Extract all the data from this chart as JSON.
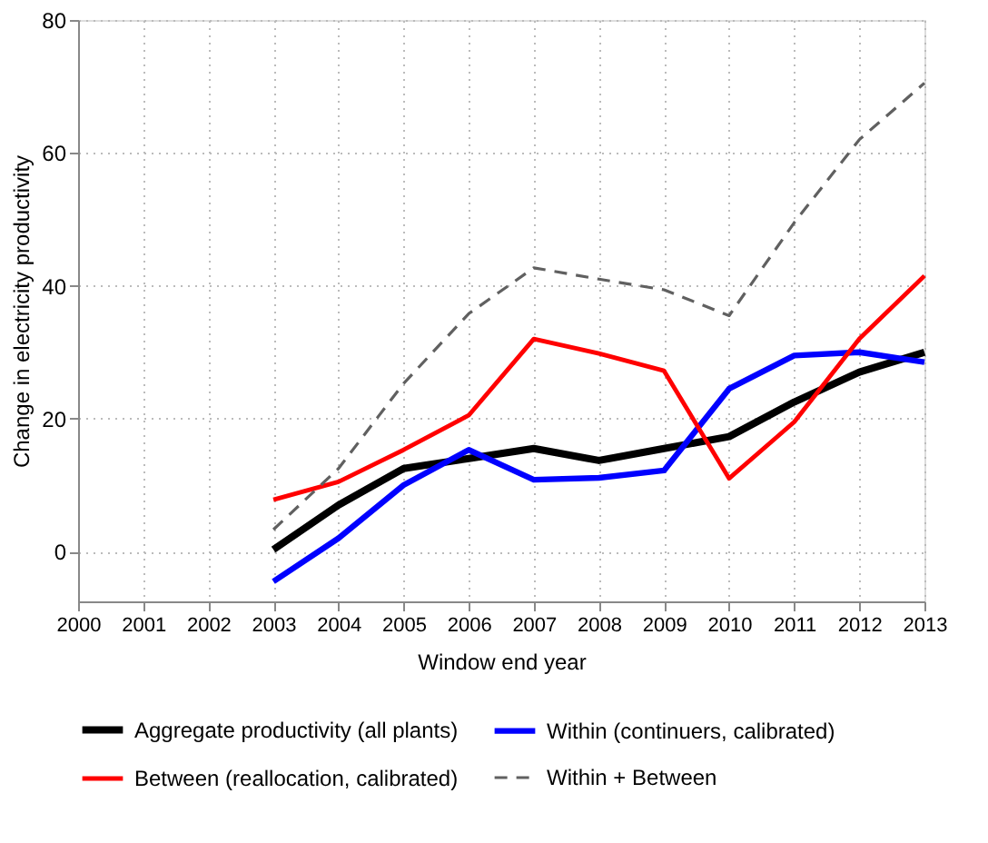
{
  "chart_data": {
    "type": "line",
    "xlabel": "Window end year",
    "ylabel": "Change in electricity productivity",
    "x": [
      2003,
      2004,
      2005,
      2006,
      2007,
      2008,
      2009,
      2010,
      2011,
      2012,
      2013
    ],
    "xlim": [
      2000,
      2013
    ],
    "xticks": [
      2000,
      2001,
      2002,
      2003,
      2004,
      2005,
      2006,
      2007,
      2008,
      2009,
      2010,
      2011,
      2012,
      2013
    ],
    "ylim": [
      -7.5,
      80
    ],
    "yticks": [
      0,
      20,
      40,
      60,
      80
    ],
    "grid": true,
    "legend": "bottom",
    "marker": "none",
    "series": [
      {
        "name": "Aggregate productivity (all plants)",
        "color": "#000000",
        "line_style": "solid",
        "values": [
          0.3,
          7,
          12.5,
          14,
          15.5,
          13.7,
          15.5,
          17.3,
          22.5,
          27,
          30
        ]
      },
      {
        "name": "Within (continuers, calibrated)",
        "color": "#0000ff",
        "line_style": "solid",
        "values": [
          -4.5,
          2,
          10,
          15.3,
          10.8,
          11.1,
          12.2,
          24.5,
          29.5,
          30,
          28.5
        ]
      },
      {
        "name": "Between (reallocation, calibrated)",
        "color": "#ff0000",
        "line_style": "solid",
        "values": [
          7.8,
          10.5,
          15.3,
          20.5,
          32,
          29.8,
          27.2,
          11,
          19.5,
          32,
          41.5
        ]
      },
      {
        "name": "Within + Between",
        "color": "#606060",
        "line_style": "dashed",
        "values": [
          3.3,
          12.5,
          25.3,
          35.8,
          42.7,
          41,
          39.4,
          35.5,
          49.5,
          62,
          70.5
        ]
      }
    ]
  }
}
